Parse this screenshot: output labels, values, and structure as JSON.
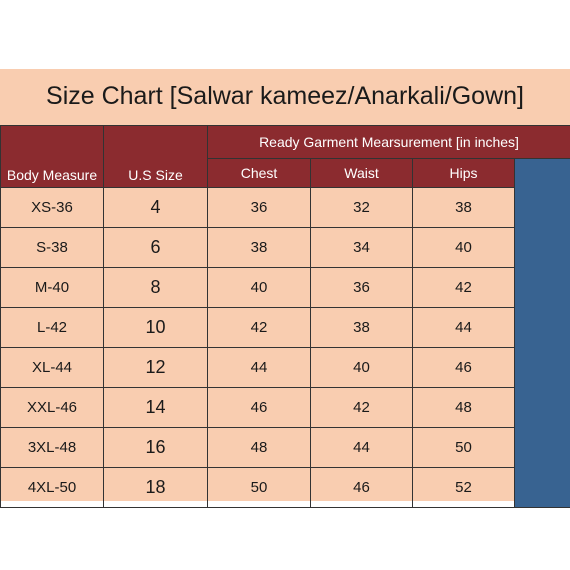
{
  "title": "Size Chart [Salwar kameez/Anarkali/Gown]",
  "headers": {
    "body_measure": "Body Measure",
    "us_size": "U.S Size",
    "group": "Ready Garment Mearsurement [in inches]",
    "chest": "Chest",
    "waist": "Waist",
    "hips": "Hips"
  },
  "rows": [
    {
      "body": "XS-36",
      "us": "4",
      "chest": "36",
      "waist": "32",
      "hips": "38"
    },
    {
      "body": "S-38",
      "us": "6",
      "chest": "38",
      "waist": "34",
      "hips": "40"
    },
    {
      "body": "M-40",
      "us": "8",
      "chest": "40",
      "waist": "36",
      "hips": "42"
    },
    {
      "body": "L-42",
      "us": "10",
      "chest": "42",
      "waist": "38",
      "hips": "44"
    },
    {
      "body": "XL-44",
      "us": "12",
      "chest": "44",
      "waist": "40",
      "hips": "46"
    },
    {
      "body": "XXL-46",
      "us": "14",
      "chest": "46",
      "waist": "42",
      "hips": "48"
    },
    {
      "body": "3XL-48",
      "us": "16",
      "chest": "48",
      "waist": "44",
      "hips": "50"
    },
    {
      "body": "4XL-50",
      "us": "18",
      "chest": "50",
      "waist": "46",
      "hips": "52"
    }
  ],
  "colors": {
    "header_bg": "#8b2b2f",
    "cell_bg": "#f9cdb0",
    "accent_column": "#386391"
  }
}
